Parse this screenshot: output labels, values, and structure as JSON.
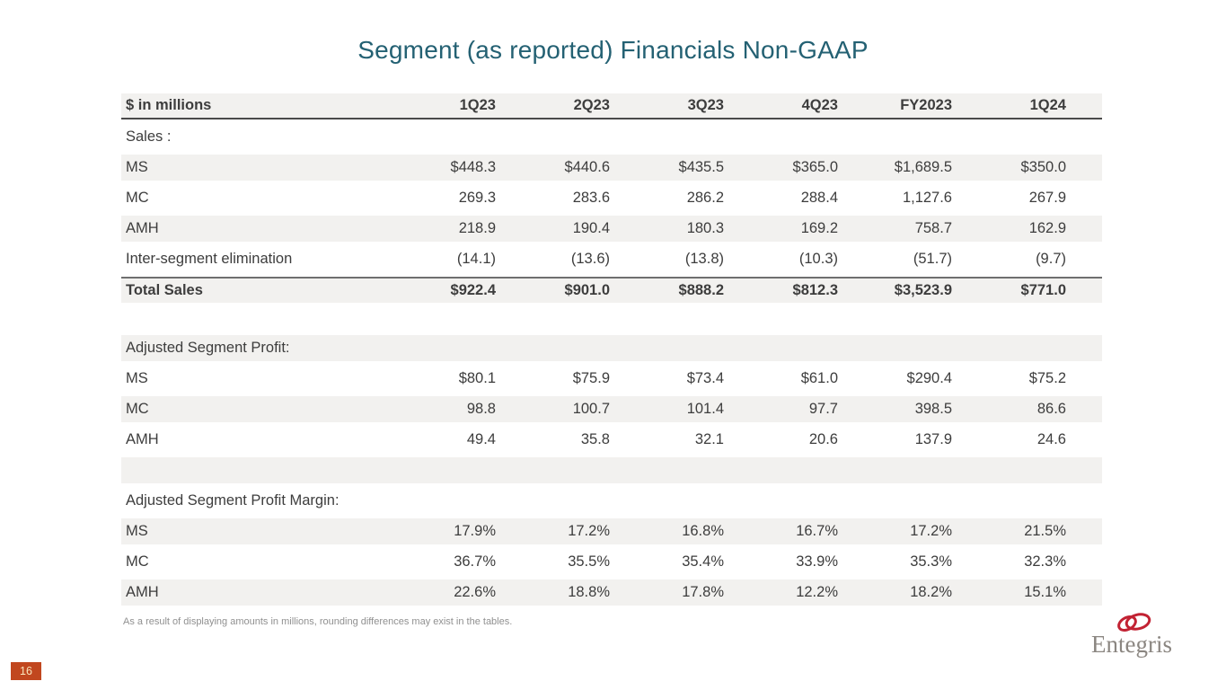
{
  "slide": {
    "title": "Segment (as reported) Financials Non-GAAP",
    "footnote": "As a result of displaying amounts in millions, rounding differences may exist in the tables.",
    "page_number": "16",
    "logo_text": "Entegris"
  },
  "colors": {
    "title_teal": "#246173",
    "row_shade": "#f2f1ef",
    "body_text": "#3d3d3d",
    "logo_red": "#c22233",
    "logo_gray": "#8b8681",
    "page_tab_bg": "#c1471f"
  },
  "table": {
    "rows": [
      {
        "name": "table-header-row",
        "label": "$ in millions",
        "values": [
          "1Q23",
          "2Q23",
          "3Q23",
          "4Q23",
          "FY2023",
          "1Q24"
        ],
        "shaded": true,
        "bold": true,
        "border_bottom": true
      },
      {
        "name": "section-row",
        "label": "Sales :",
        "values": [
          "",
          "",
          "",
          "",
          "",
          ""
        ],
        "shaded": false
      },
      {
        "label": "MS",
        "values": [
          "$448.3",
          "$440.6",
          "$435.5",
          "$365.0",
          "$1,689.5",
          "$350.0"
        ],
        "shaded": true
      },
      {
        "label": "MC",
        "values": [
          "269.3",
          "283.6",
          "286.2",
          "288.4",
          "1,127.6",
          "267.9"
        ],
        "shaded": false
      },
      {
        "label": "AMH",
        "values": [
          "218.9",
          "190.4",
          "180.3",
          "169.2",
          "758.7",
          "162.9"
        ],
        "shaded": true
      },
      {
        "label": "Inter-segment elimination",
        "values": [
          "(14.1)",
          "(13.6)",
          "(13.8)",
          "(10.3)",
          "(51.7)",
          "(9.7)"
        ],
        "shaded": false
      },
      {
        "name": "total-row",
        "label": "Total Sales",
        "values": [
          "$922.4",
          "$901.0",
          "$888.2",
          "$812.3",
          "$3,523.9",
          "$771.0"
        ],
        "shaded": true,
        "bold": true,
        "border_top": true
      },
      {
        "spacer": true
      },
      {
        "name": "section-row",
        "label": "Adjusted Segment Profit:",
        "values": [
          "",
          "",
          "",
          "",
          "",
          ""
        ],
        "shaded": true
      },
      {
        "label": "MS",
        "values": [
          "$80.1",
          "$75.9",
          "$73.4",
          "$61.0",
          "$290.4",
          "$75.2"
        ],
        "shaded": false
      },
      {
        "label": "MC",
        "values": [
          "98.8",
          "100.7",
          "101.4",
          "97.7",
          "398.5",
          "86.6"
        ],
        "shaded": true
      },
      {
        "label": "AMH",
        "values": [
          "49.4",
          "35.8",
          "32.1",
          "20.6",
          "137.9",
          "24.6"
        ],
        "shaded": false
      },
      {
        "name": "empty-row",
        "label": "",
        "values": [
          "",
          "",
          "",
          "",
          "",
          ""
        ],
        "shaded": true
      },
      {
        "name": "section-row",
        "label": "Adjusted Segment Profit Margin:",
        "values": [
          "",
          "",
          "",
          "",
          "",
          ""
        ],
        "shaded": false
      },
      {
        "label": "MS",
        "values": [
          "17.9%",
          "17.2%",
          "16.8%",
          "16.7%",
          "17.2%",
          "21.5%"
        ],
        "shaded": true
      },
      {
        "label": "MC",
        "values": [
          "36.7%",
          "35.5%",
          "35.4%",
          "33.9%",
          "35.3%",
          "32.3%"
        ],
        "shaded": false
      },
      {
        "label": "AMH",
        "values": [
          "22.6%",
          "18.8%",
          "17.8%",
          "12.2%",
          "18.2%",
          "15.1%"
        ],
        "shaded": true
      }
    ]
  }
}
